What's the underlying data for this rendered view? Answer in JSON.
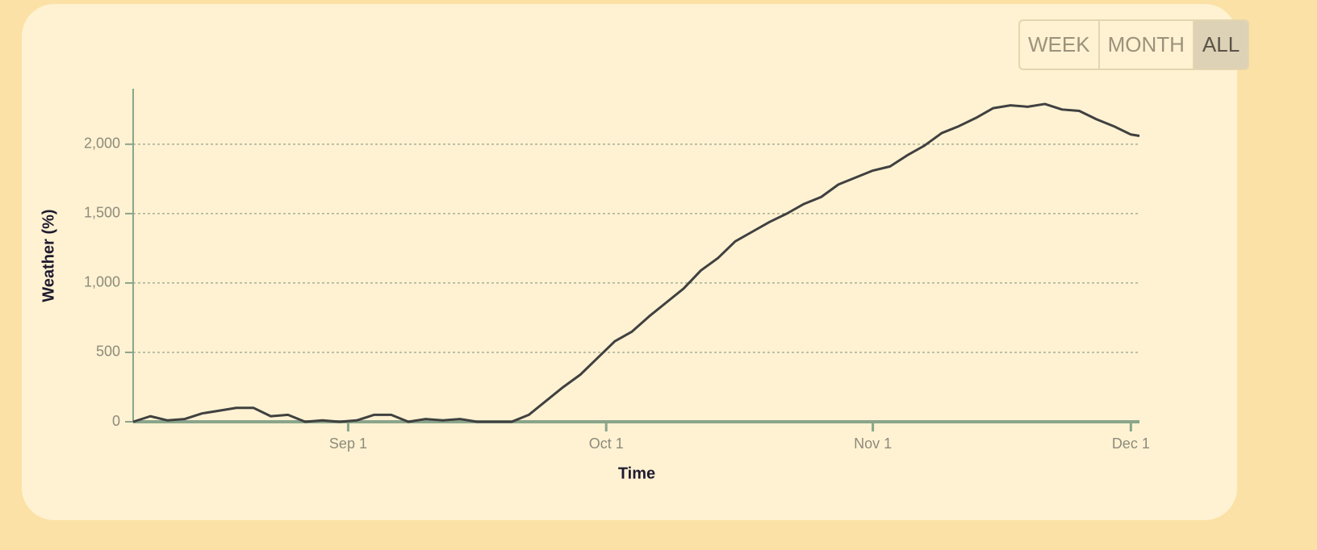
{
  "controls": {
    "buttons": [
      "WEEK",
      "MONTH",
      "ALL"
    ],
    "active": 2
  },
  "chart_data": {
    "type": "line",
    "x_label": "Time",
    "y_label": "Weather (%)",
    "x": [
      "Aug 7",
      "Aug 9",
      "Aug 11",
      "Aug 13",
      "Aug 15",
      "Aug 17",
      "Aug 19",
      "Aug 21",
      "Aug 23",
      "Aug 25",
      "Aug 27",
      "Aug 29",
      "Aug 31",
      "Sep 2",
      "Sep 4",
      "Sep 6",
      "Sep 8",
      "Sep 10",
      "Sep 12",
      "Sep 14",
      "Sep 16",
      "Sep 18",
      "Sep 20",
      "Sep 22",
      "Sep 24",
      "Sep 26",
      "Sep 28",
      "Sep 30",
      "Oct 2",
      "Oct 4",
      "Oct 6",
      "Oct 8",
      "Oct 10",
      "Oct 12",
      "Oct 14",
      "Oct 16",
      "Oct 18",
      "Oct 20",
      "Oct 22",
      "Oct 24",
      "Oct 26",
      "Oct 28",
      "Oct 30",
      "Nov 1",
      "Nov 3",
      "Nov 5",
      "Nov 7",
      "Nov 9",
      "Nov 11",
      "Nov 13",
      "Nov 15",
      "Nov 17",
      "Nov 19",
      "Nov 21",
      "Nov 23",
      "Nov 25",
      "Nov 27",
      "Nov 29",
      "Dec 1",
      "Dec 2"
    ],
    "series": [
      {
        "name": "Weather",
        "color": "#404040",
        "values": [
          0,
          40,
          10,
          20,
          60,
          80,
          100,
          100,
          40,
          50,
          0,
          10,
          0,
          10,
          50,
          50,
          0,
          20,
          10,
          20,
          0,
          0,
          0,
          50,
          150,
          250,
          340,
          460,
          580,
          650,
          760,
          860,
          960,
          1090,
          1180,
          1300,
          1370,
          1440,
          1500,
          1570,
          1620,
          1710,
          1760,
          1810,
          1840,
          1920,
          1990,
          2080,
          2130,
          2190,
          2260,
          2280,
          2270,
          2290,
          2250,
          2240,
          2180,
          2130,
          2070,
          2060
        ]
      }
    ],
    "xlim": [
      "Aug 7",
      "Dec 2"
    ],
    "xticks": [
      "Sep 1",
      "Oct 1",
      "Nov 1",
      "Dec 1"
    ],
    "ylim": [
      0,
      2400
    ],
    "yticks": [
      0,
      500,
      {
        "value": 1000,
        "label": "1,000"
      },
      {
        "value": 1500,
        "label": "1,500"
      },
      {
        "value": 2000,
        "label": "2,000"
      }
    ],
    "grid": true
  }
}
